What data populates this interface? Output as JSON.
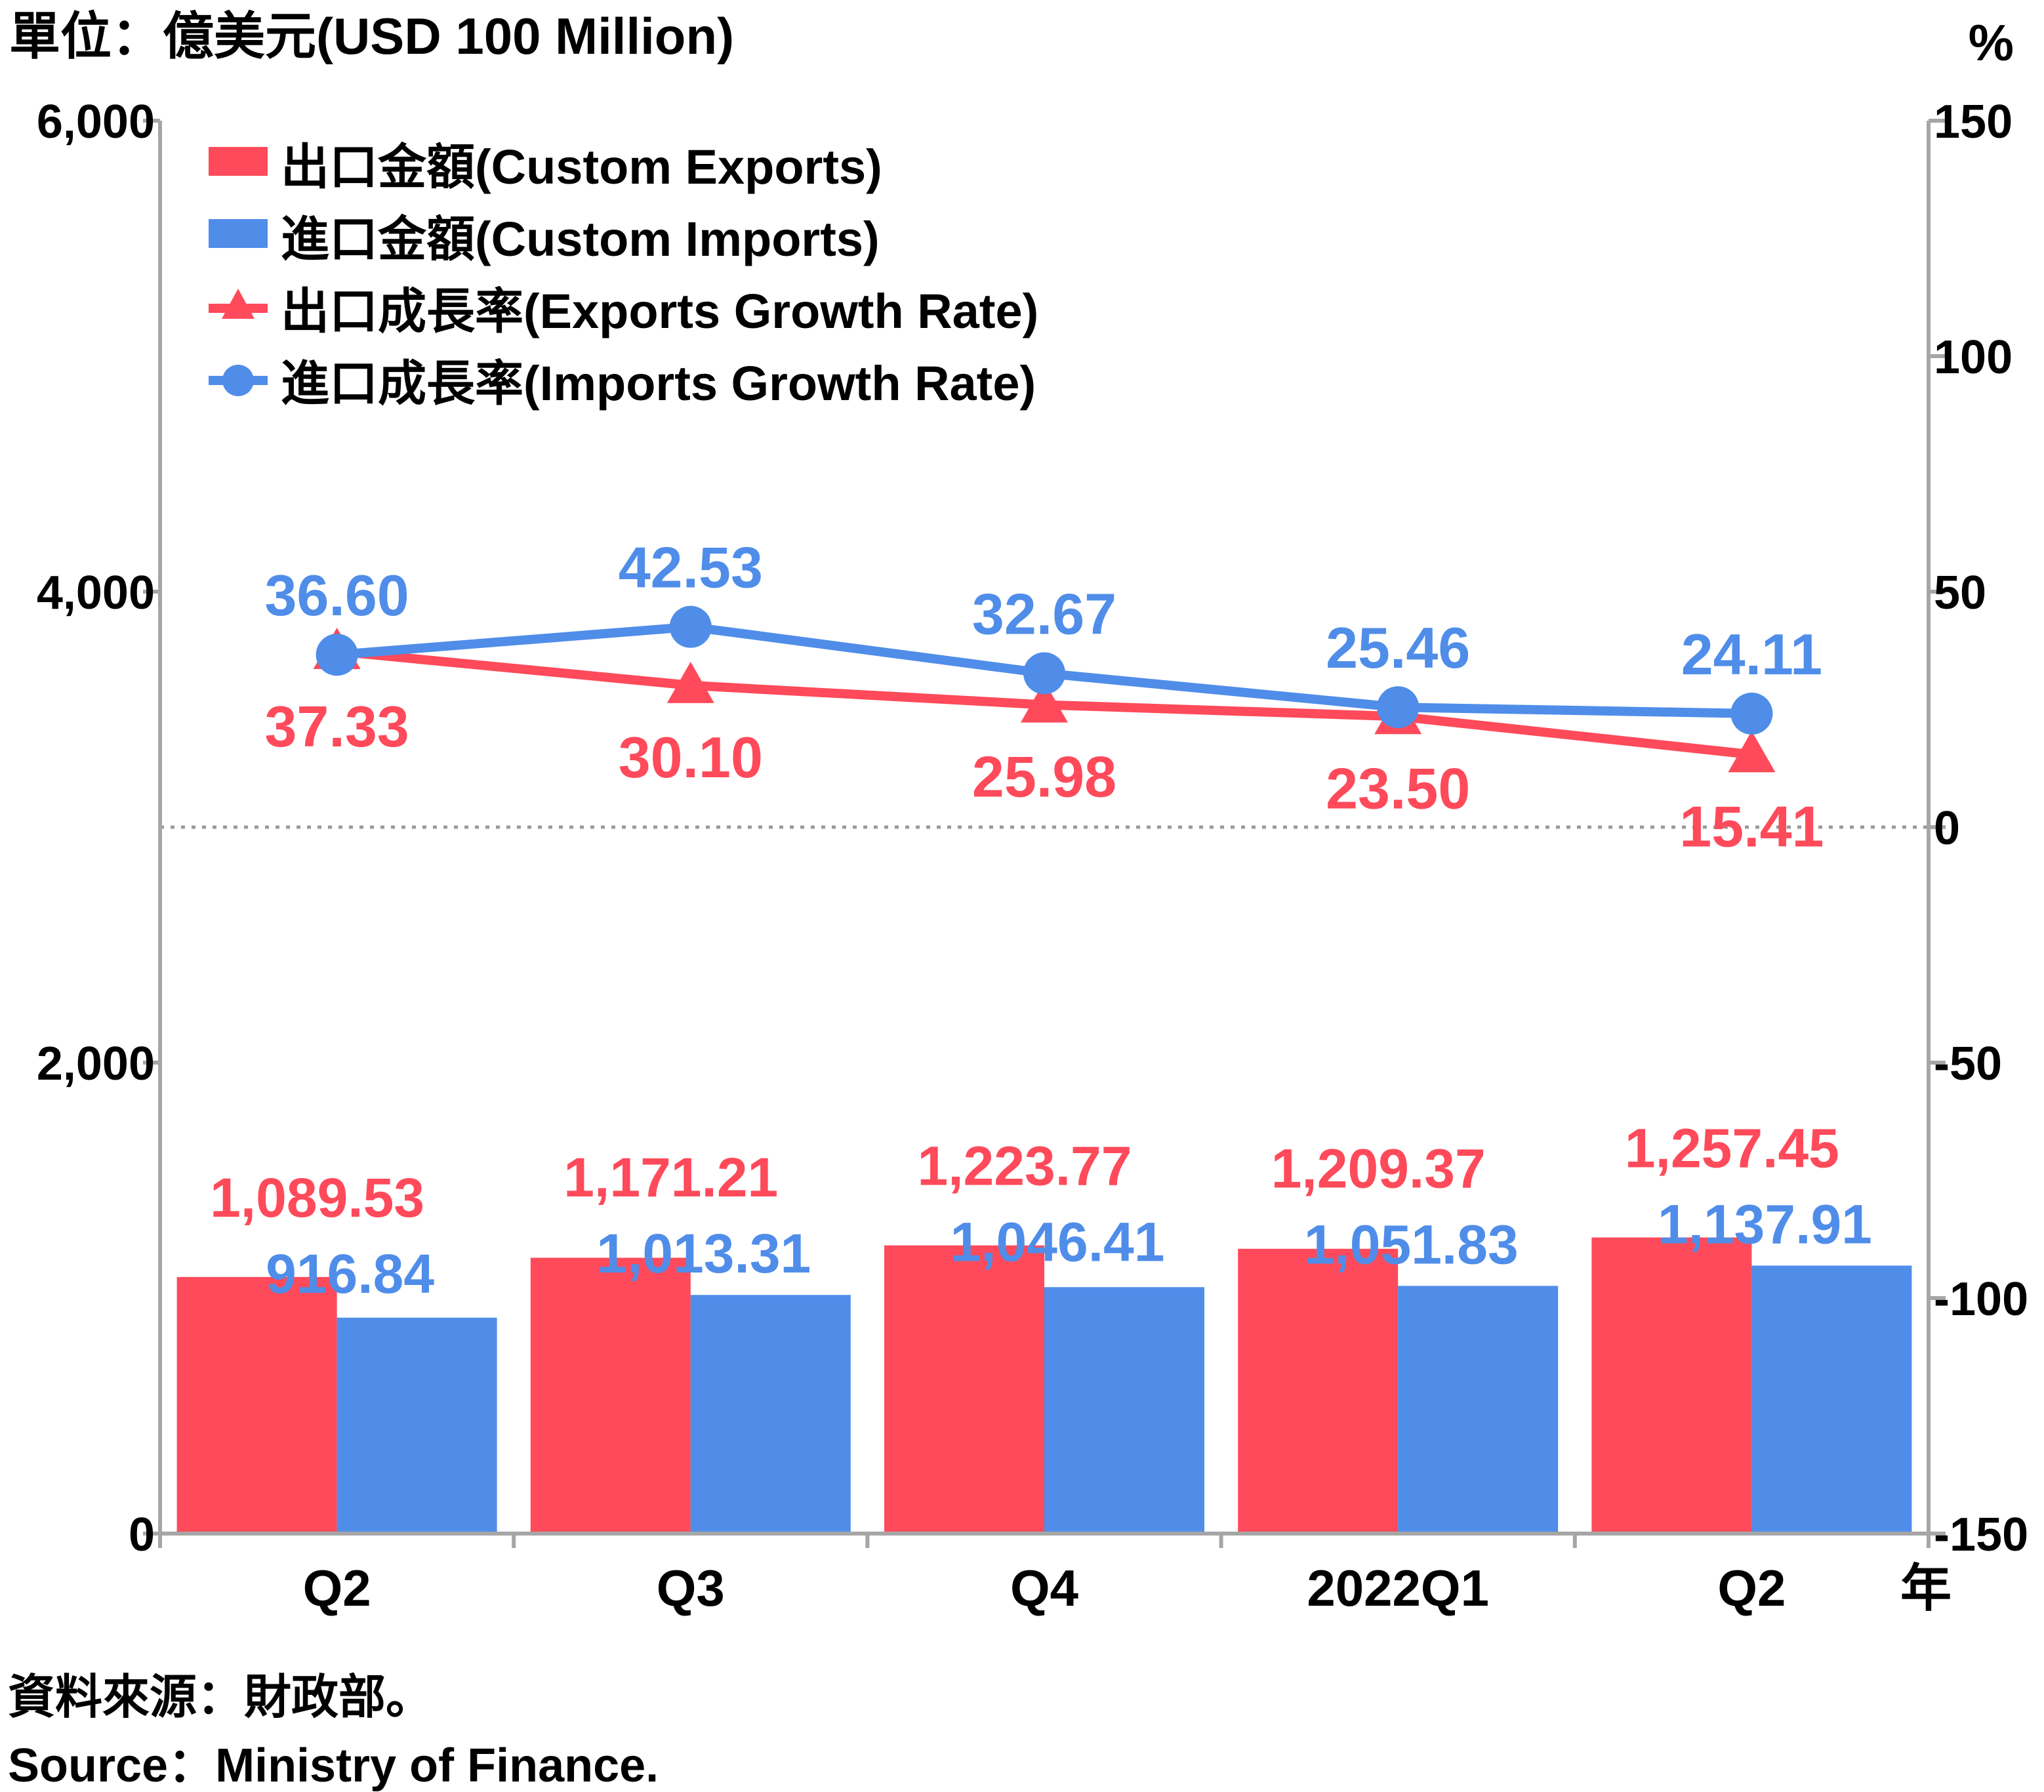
{
  "header": {
    "left_unit": "單位：億美元(USD 100 Million)",
    "right_unit": "%"
  },
  "footer": {
    "source_zh": "資料來源：財政部。",
    "source_en": "Source：Ministry of Finance."
  },
  "year_marker": "年",
  "colors": {
    "exports": "#fe4a5a",
    "imports": "#4f8de9",
    "axis": "#a6a6a6",
    "zero_line": "#9a9a9a"
  },
  "chart_data": {
    "type": "bar",
    "categories": [
      "Q2",
      "Q3",
      "Q4",
      "2022Q1",
      "Q2"
    ],
    "left_axis": {
      "ylim": [
        0,
        6000
      ],
      "ticks": [
        0,
        2000,
        4000,
        6000
      ],
      "tick_labels": [
        "0",
        "2,000",
        "4,000",
        "6,000"
      ]
    },
    "right_axis": {
      "ylim": [
        -150,
        150
      ],
      "ticks": [
        -150,
        -100,
        -50,
        0,
        50,
        100,
        150
      ],
      "tick_labels": [
        "-150",
        "-100",
        "-50",
        "0",
        "50",
        "100",
        "150"
      ]
    },
    "series": [
      {
        "name": "出口金額(Custom Exports)",
        "type": "bar",
        "axis": "left",
        "values": [
          1089.53,
          1171.21,
          1223.77,
          1209.37,
          1257.45
        ],
        "labels": [
          "1,089.53",
          "1,171.21",
          "1,223.77",
          "1,209.37",
          "1,257.45"
        ]
      },
      {
        "name": "進口金額(Custom Imports)",
        "type": "bar",
        "axis": "left",
        "values": [
          916.84,
          1013.31,
          1046.41,
          1051.83,
          1137.91
        ],
        "labels": [
          "916.84",
          "1,013.31",
          "1,046.41",
          "1,051.83",
          "1,137.91"
        ]
      },
      {
        "name": "出口成長率(Exports Growth Rate)",
        "type": "line",
        "marker": "triangle",
        "axis": "right",
        "values": [
          37.33,
          30.1,
          25.98,
          23.5,
          15.41
        ],
        "labels": [
          "37.33",
          "30.10",
          "25.98",
          "23.50",
          "15.41"
        ]
      },
      {
        "name": "進口成長率(Imports Growth Rate)",
        "type": "line",
        "marker": "circle",
        "axis": "right",
        "values": [
          36.6,
          42.53,
          32.67,
          25.46,
          24.11
        ],
        "labels": [
          "36.60",
          "42.53",
          "32.67",
          "25.46",
          "24.11"
        ]
      }
    ],
    "zero_reference_line": true,
    "grid": false,
    "legend": "top-left"
  }
}
